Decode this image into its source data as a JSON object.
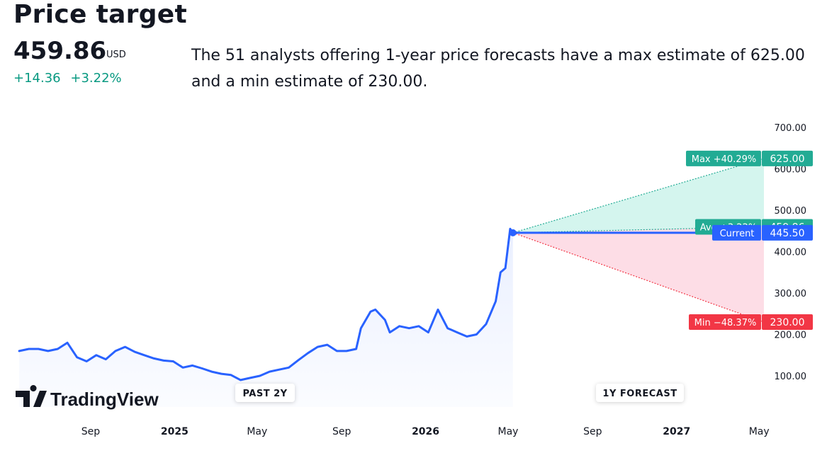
{
  "header": {
    "title": "Price target",
    "price": "459.86",
    "currency": "USD",
    "change_abs": "+14.36",
    "change_pct": "+3.22%",
    "description": "The 51 analysts offering 1-year price forecasts have a max estimate of 625.00 and a min estimate of 230.00."
  },
  "brand": {
    "name": "TradingView"
  },
  "chart_data": {
    "type": "line",
    "ylim": [
      0,
      700
    ],
    "y_ticks": [
      "700.00",
      "600.00",
      "500.00",
      "400.00",
      "300.00",
      "200.00",
      "100.00"
    ],
    "x_ticks": [
      {
        "label": "Sep",
        "date": "2024-09",
        "bold": false
      },
      {
        "label": "2025",
        "date": "2025-01",
        "bold": true
      },
      {
        "label": "May",
        "date": "2025-05",
        "bold": false
      },
      {
        "label": "Sep",
        "date": "2025-09",
        "bold": false
      },
      {
        "label": "2026",
        "date": "2026-01",
        "bold": true
      },
      {
        "label": "May",
        "date": "2026-05",
        "bold": false
      },
      {
        "label": "Sep",
        "date": "2026-09",
        "bold": false
      },
      {
        "label": "2027",
        "date": "2027-01",
        "bold": true
      },
      {
        "label": "May",
        "date": "2027-05",
        "bold": false
      }
    ],
    "sections": {
      "past": "PAST 2Y",
      "forecast": "1Y FORECAST"
    },
    "history": [
      [
        "2024-05-20",
        160
      ],
      [
        "2024-06-03",
        165
      ],
      [
        "2024-06-17",
        165
      ],
      [
        "2024-07-01",
        160
      ],
      [
        "2024-07-15",
        165
      ],
      [
        "2024-07-29",
        180
      ],
      [
        "2024-08-12",
        145
      ],
      [
        "2024-08-26",
        135
      ],
      [
        "2024-09-09",
        150
      ],
      [
        "2024-09-23",
        140
      ],
      [
        "2024-10-07",
        160
      ],
      [
        "2024-10-21",
        170
      ],
      [
        "2024-11-04",
        158
      ],
      [
        "2024-11-18",
        150
      ],
      [
        "2024-12-02",
        142
      ],
      [
        "2024-12-16",
        137
      ],
      [
        "2024-12-30",
        135
      ],
      [
        "2025-01-13",
        120
      ],
      [
        "2025-01-27",
        125
      ],
      [
        "2025-02-10",
        118
      ],
      [
        "2025-02-24",
        110
      ],
      [
        "2025-03-10",
        105
      ],
      [
        "2025-03-24",
        102
      ],
      [
        "2025-04-07",
        90
      ],
      [
        "2025-04-21",
        95
      ],
      [
        "2025-05-05",
        100
      ],
      [
        "2025-05-19",
        110
      ],
      [
        "2025-06-02",
        115
      ],
      [
        "2025-06-16",
        120
      ],
      [
        "2025-06-30",
        138
      ],
      [
        "2025-07-14",
        155
      ],
      [
        "2025-07-28",
        170
      ],
      [
        "2025-08-11",
        175
      ],
      [
        "2025-08-25",
        160
      ],
      [
        "2025-09-08",
        160
      ],
      [
        "2025-09-22",
        165
      ],
      [
        "2025-09-29",
        215
      ],
      [
        "2025-10-13",
        255
      ],
      [
        "2025-10-20",
        260
      ],
      [
        "2025-11-03",
        235
      ],
      [
        "2025-11-10",
        205
      ],
      [
        "2025-11-24",
        220
      ],
      [
        "2025-12-08",
        215
      ],
      [
        "2025-12-22",
        220
      ],
      [
        "2026-01-05",
        205
      ],
      [
        "2026-01-19",
        260
      ],
      [
        "2026-02-02",
        215
      ],
      [
        "2026-02-16",
        205
      ],
      [
        "2026-03-02",
        195
      ],
      [
        "2026-03-16",
        200
      ],
      [
        "2026-03-30",
        225
      ],
      [
        "2026-04-13",
        280
      ],
      [
        "2026-04-20",
        350
      ],
      [
        "2026-04-27",
        360
      ],
      [
        "2026-05-04",
        455
      ],
      [
        "2026-05-08",
        445.5
      ]
    ],
    "current": {
      "date": "2026-05-08",
      "value": 445.5
    },
    "forecast_end": "2027-05-08",
    "forecast": {
      "max": {
        "label": "Max +40.29%",
        "value": 625.0,
        "value_label": "625.00",
        "color": "#22ab94"
      },
      "avg": {
        "label": "Avg +3.22%",
        "value": 459.86,
        "value_label": "459.86",
        "color": "#22ab94"
      },
      "current": {
        "label": "Current",
        "value": 445.5,
        "value_label": "445.50",
        "color": "#2962ff"
      },
      "min": {
        "label": "Min −48.37%",
        "value": 230.0,
        "value_label": "230.00",
        "color": "#f23645"
      }
    },
    "colors": {
      "line": "#2962ff",
      "up_fill": "#d4f5ee",
      "down_fill": "#fddde6",
      "up": "#22ab94",
      "down": "#f23645",
      "avg_line": "#22ab94"
    }
  }
}
